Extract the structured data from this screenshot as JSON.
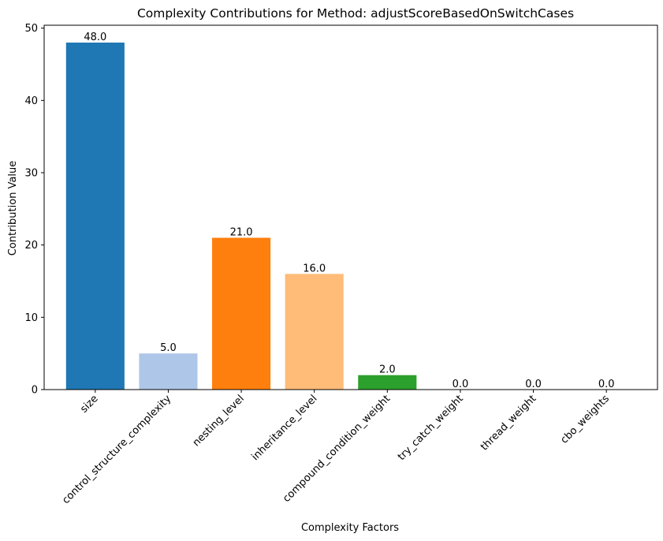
{
  "chart_data": {
    "type": "bar",
    "title": "Complexity Contributions for Method: adjustScoreBasedOnSwitchCases",
    "xlabel": "Complexity Factors",
    "ylabel": "Contribution Value",
    "ylim": [
      0,
      50.4
    ],
    "yticks": [
      0,
      10,
      20,
      30,
      40,
      50
    ],
    "categories": [
      "size",
      "control_structure_complexity",
      "nesting_level",
      "inheritance_level",
      "compound_condition_weight",
      "try_catch_weight",
      "thread_weight",
      "cbo_weights"
    ],
    "values": [
      48.0,
      5.0,
      21.0,
      16.0,
      2.0,
      0.0,
      0.0,
      0.0
    ],
    "value_labels": [
      "48.0",
      "5.0",
      "21.0",
      "16.0",
      "2.0",
      "0.0",
      "0.0",
      "0.0"
    ],
    "colors": [
      "#1f77b4",
      "#aec7e8",
      "#ff7f0e",
      "#ffbb78",
      "#2ca02c",
      "#98df8a",
      "#d62728",
      "#ff9896"
    ],
    "grid": false,
    "legend": "none"
  }
}
